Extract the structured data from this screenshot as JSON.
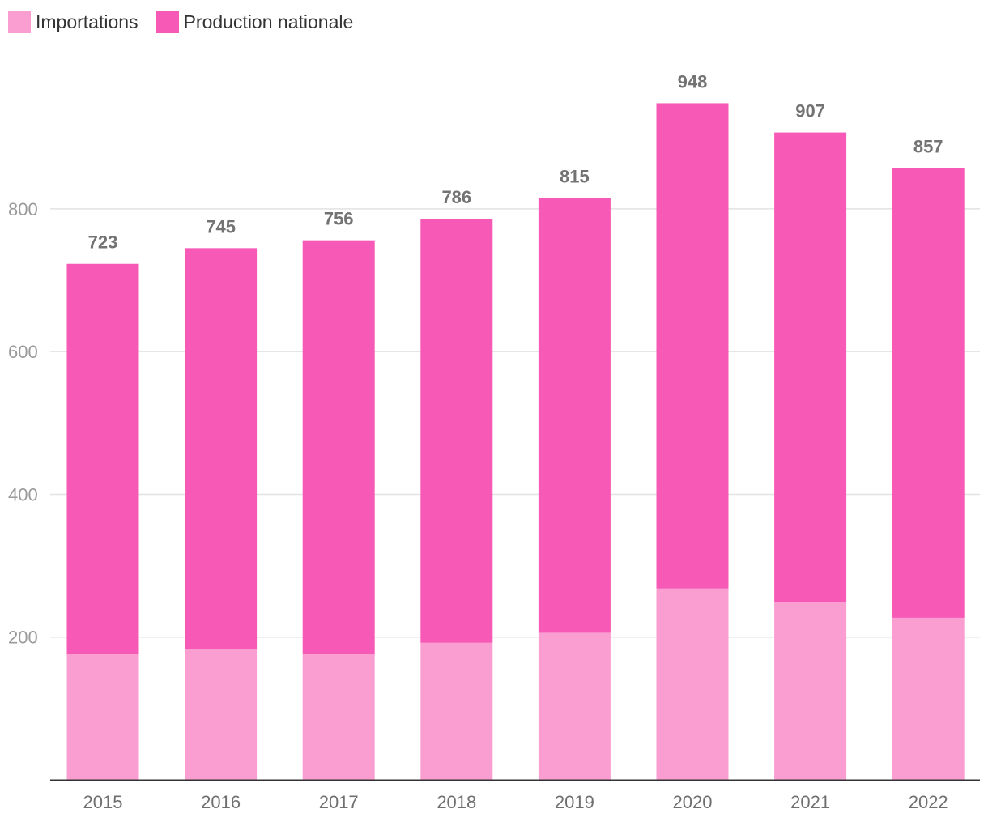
{
  "chart_data": {
    "type": "bar",
    "stacked": true,
    "categories": [
      "2015",
      "2016",
      "2017",
      "2018",
      "2019",
      "2020",
      "2021",
      "2022"
    ],
    "series": [
      {
        "name": "Importations",
        "color": "#fa9ed2",
        "values": [
          176,
          183,
          176,
          192,
          206,
          268,
          249,
          227
        ]
      },
      {
        "name": "Production nationale",
        "color": "#f759b7",
        "values": [
          547,
          562,
          580,
          594,
          609,
          680,
          658,
          630
        ]
      }
    ],
    "totals": [
      "723",
      "745",
      "756",
      "786",
      "815",
      "948",
      "907",
      "857"
    ],
    "yticks": [
      "200",
      "400",
      "600",
      "800"
    ],
    "ylim": [
      0,
      1000
    ],
    "grid": true,
    "legend_position": "top-left",
    "title": "",
    "xlabel": "",
    "ylabel": ""
  }
}
